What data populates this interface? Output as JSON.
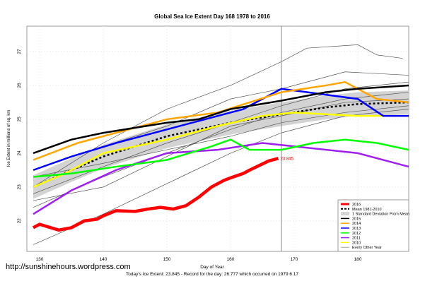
{
  "chart_data": {
    "type": "line",
    "title": "Global Sea Ice Extent Day 168 1978 to 2016",
    "xlabel": "Day of Year",
    "ylabel": "Ice Extent in millions of sq. km",
    "caption": "Today's Ice Extent: 23.845  - Record for the day: 26.777 which occurred on 1979 6 17",
    "xlim": [
      128,
      188
    ],
    "ylim": [
      21.1,
      27.75
    ],
    "xticks": [
      130,
      140,
      150,
      160,
      170,
      180
    ],
    "yticks": [
      22,
      23,
      24,
      25,
      26,
      27
    ],
    "current_day": 168,
    "grid": true,
    "legend_position": "bottom-right",
    "current_label": "23.845",
    "mean": {
      "name": "Mean 1981-2010",
      "x": [
        129,
        135,
        140,
        150,
        160,
        168,
        175,
        180,
        188
      ],
      "y": [
        23.0,
        23.5,
        23.9,
        24.5,
        24.9,
        25.15,
        25.35,
        25.45,
        25.5
      ],
      "sd": 0.35,
      "sd_name": "1 Standard Deviation From Mean"
    },
    "series": [
      {
        "name": "2016",
        "color": "#ff0000",
        "x": [
          129,
          130,
          133,
          135,
          137,
          139,
          140,
          142,
          145,
          147,
          149,
          151,
          153,
          155,
          157,
          159,
          160,
          162,
          163,
          166,
          167.5
        ],
        "y": [
          21.8,
          21.9,
          21.73,
          21.8,
          22.0,
          22.05,
          22.15,
          22.3,
          22.28,
          22.35,
          22.4,
          22.35,
          22.45,
          22.7,
          23.0,
          23.2,
          23.27,
          23.4,
          23.5,
          23.77,
          23.845
        ]
      },
      {
        "name": "2015",
        "color": "#000000",
        "x": [
          129,
          135,
          140,
          150,
          155,
          160,
          168,
          175,
          180,
          188
        ],
        "y": [
          24.0,
          24.4,
          24.6,
          24.9,
          25.0,
          25.3,
          25.55,
          25.8,
          25.9,
          26.0
        ]
      },
      {
        "name": "2014",
        "color": "#ffa500",
        "x": [
          129,
          136,
          142,
          150,
          158,
          163,
          168,
          175,
          178,
          183,
          188
        ],
        "y": [
          23.8,
          24.3,
          24.6,
          25.0,
          25.2,
          25.5,
          25.8,
          26.0,
          26.1,
          25.6,
          25.5
        ]
      },
      {
        "name": "2013",
        "color": "#0000ff",
        "x": [
          129,
          135,
          142,
          150,
          156,
          162,
          168,
          172,
          176,
          180,
          184,
          188
        ],
        "y": [
          23.5,
          23.9,
          24.3,
          24.7,
          25.0,
          25.3,
          25.9,
          25.8,
          25.7,
          25.6,
          25.1,
          25.1
        ]
      },
      {
        "name": "2012",
        "color": "#00ff00",
        "x": [
          129,
          135,
          142,
          150,
          157,
          160,
          163,
          168,
          173,
          178,
          183,
          188
        ],
        "y": [
          23.3,
          23.4,
          23.6,
          23.8,
          24.2,
          24.4,
          24.1,
          24.1,
          24.3,
          24.4,
          24.3,
          24.1
        ]
      },
      {
        "name": "2011",
        "color": "#a020f0",
        "x": [
          129,
          135,
          142,
          150,
          158,
          165,
          170,
          180,
          188
        ],
        "y": [
          22.2,
          22.9,
          23.5,
          24.0,
          24.1,
          24.3,
          24.2,
          24.0,
          23.6
        ]
      },
      {
        "name": "2010",
        "color": "#ffff00",
        "x": [
          129,
          134,
          140,
          150,
          158,
          165,
          170,
          180,
          188
        ],
        "y": [
          23.0,
          23.4,
          24.0,
          24.4,
          24.8,
          25.1,
          25.2,
          25.1,
          25.1
        ]
      }
    ],
    "other_years": {
      "name": "Every Other Year",
      "color": "#555555",
      "lines": [
        {
          "x": [
            129,
            140,
            150,
            160,
            168,
            172,
            180,
            183,
            187
          ],
          "y": [
            23.0,
            24.3,
            25.3,
            26.0,
            26.7,
            27.1,
            27.2,
            26.9,
            26.8
          ]
        },
        {
          "x": [
            129,
            140,
            150,
            160,
            168,
            178,
            188
          ],
          "y": [
            23.5,
            24.2,
            24.8,
            25.6,
            25.9,
            26.4,
            26.3
          ]
        },
        {
          "x": [
            129,
            140,
            150,
            160,
            168,
            178,
            188
          ],
          "y": [
            22.4,
            23.3,
            24.0,
            24.7,
            25.2,
            25.6,
            25.8
          ]
        },
        {
          "x": [
            129,
            140,
            150,
            160,
            168,
            178,
            188
          ],
          "y": [
            21.3,
            22.2,
            23.1,
            24.0,
            24.6,
            25.1,
            25.3
          ]
        },
        {
          "x": [
            129,
            140,
            150,
            160,
            168,
            178,
            188
          ],
          "y": [
            22.8,
            23.6,
            24.3,
            24.9,
            25.4,
            25.9,
            26.1
          ]
        },
        {
          "x": [
            129,
            140,
            150,
            160,
            168,
            178,
            188
          ],
          "y": [
            23.3,
            23.7,
            24.1,
            24.5,
            24.9,
            25.2,
            25.4
          ]
        },
        {
          "x": [
            129,
            140,
            150,
            160,
            168,
            178,
            188
          ],
          "y": [
            22.6,
            23.0,
            23.9,
            24.8,
            25.1,
            25.5,
            25.6
          ]
        }
      ]
    }
  },
  "footer": {
    "url": "http://sunshinehours.wordpress.com"
  }
}
